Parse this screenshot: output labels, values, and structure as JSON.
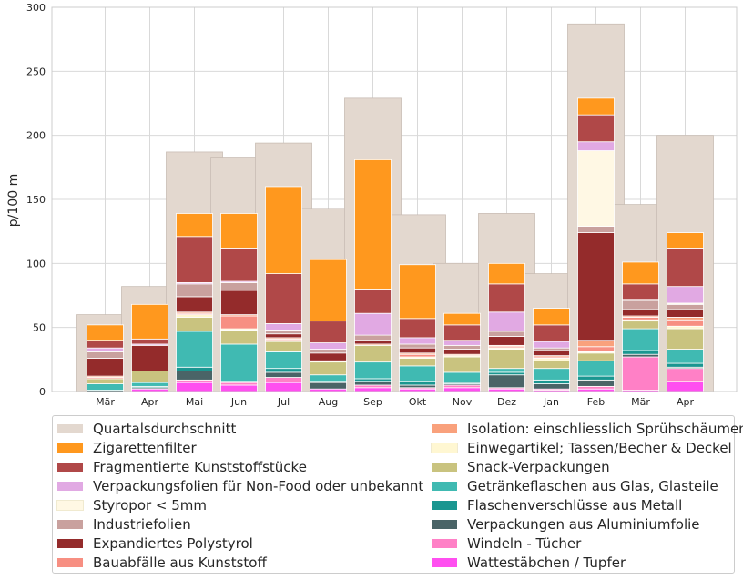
{
  "chart_data": {
    "type": "bar",
    "ylabel": "p/100 m",
    "xlabel": "",
    "ylim": [
      0,
      300
    ],
    "yticks": [
      0,
      50,
      100,
      150,
      200,
      250,
      300
    ],
    "grid": true,
    "categories": [
      "Mär",
      "Apr",
      "Mai",
      "Jun",
      "Jul",
      "Aug",
      "Sep",
      "Okt",
      "Nov",
      "Dez",
      "Jan",
      "Feb",
      "Mär",
      "Apr"
    ],
    "background_series": {
      "name": "Quartalsdurchschnitt",
      "color": "#e3d8cf",
      "values": [
        60,
        82,
        187,
        183,
        194,
        143,
        229,
        138,
        100,
        139,
        92,
        287,
        146,
        200
      ]
    },
    "series": [
      {
        "name": "Wattestäbchen / Tupfer",
        "color": "#ff4ff0",
        "values": [
          0,
          2,
          7,
          5,
          7,
          2,
          3,
          2,
          3,
          2,
          1,
          2,
          1,
          8
        ]
      },
      {
        "name": "Windeln - Tücher",
        "color": "#ff80c6",
        "values": [
          0,
          0,
          2,
          2,
          4,
          0,
          2,
          1,
          2,
          1,
          1,
          2,
          26,
          10
        ]
      },
      {
        "name": "Verpackungen aus Aluminiumfolie",
        "color": "#4a6467",
        "values": [
          1,
          1,
          7,
          1,
          4,
          5,
          3,
          2,
          1,
          10,
          4,
          5,
          2,
          1
        ]
      },
      {
        "name": "Flaschenverschlüsse aus Metall",
        "color": "#1a9690",
        "values": [
          0,
          1,
          3,
          0,
          3,
          1,
          2,
          3,
          1,
          2,
          3,
          3,
          3,
          3
        ]
      },
      {
        "name": "Getränkeflaschen aus Glas, Glasteile",
        "color": "#40bab2",
        "values": [
          5,
          3,
          28,
          29,
          13,
          5,
          13,
          12,
          8,
          3,
          9,
          12,
          17,
          11
        ]
      },
      {
        "name": "Snack-Verpackungen",
        "color": "#c9c37f",
        "values": [
          4,
          9,
          11,
          11,
          8,
          10,
          13,
          6,
          12,
          15,
          6,
          6,
          6,
          16
        ]
      },
      {
        "name": "Einwegartikel; Tassen/Becher & Deckel",
        "color": "#fff7d2",
        "values": [
          0,
          0,
          2,
          1,
          1,
          1,
          0,
          1,
          1,
          1,
          2,
          1,
          1,
          2
        ]
      },
      {
        "name": "Bauabfälle aus Kunststoff",
        "color": "#f78f82",
        "values": [
          1,
          0,
          1,
          10,
          1,
          0,
          0,
          2,
          0,
          1,
          1,
          4,
          2,
          5
        ]
      },
      {
        "name": "Isolation: einschliesslich Sprühschäumen",
        "color": "#f9a17c",
        "values": [
          1,
          0,
          1,
          1,
          1,
          0,
          1,
          1,
          1,
          1,
          1,
          5,
          1,
          2
        ]
      },
      {
        "name": "Expandiertes Polystyrol",
        "color": "#942b2b",
        "values": [
          14,
          20,
          12,
          19,
          3,
          6,
          3,
          4,
          4,
          7,
          4,
          84,
          5,
          6
        ]
      },
      {
        "name": "Industriefolien",
        "color": "#c9a19e",
        "values": [
          5,
          0,
          10,
          6,
          3,
          3,
          4,
          3,
          3,
          4,
          2,
          5,
          7,
          4
        ]
      },
      {
        "name": "Styropor < 5mm",
        "color": "#fff8e4",
        "values": [
          0,
          0,
          0,
          0,
          0,
          0,
          0,
          0,
          0,
          0,
          0,
          59,
          0,
          1
        ]
      },
      {
        "name": "Verpackungsfolien für Non-Food oder unbekannt",
        "color": "#e1a9e3",
        "values": [
          3,
          1,
          1,
          1,
          5,
          5,
          17,
          5,
          4,
          15,
          5,
          7,
          1,
          13
        ]
      },
      {
        "name": "Fragmentierte Kunststoffstücke",
        "color": "#b04848",
        "values": [
          6,
          4,
          36,
          26,
          39,
          17,
          19,
          15,
          12,
          22,
          13,
          21,
          12,
          30
        ]
      },
      {
        "name": "Zigarettenfilter",
        "color": "#ff981e",
        "values": [
          12,
          27,
          18,
          27,
          68,
          48,
          101,
          42,
          9,
          16,
          13,
          13,
          17,
          12
        ]
      }
    ]
  },
  "legend": {
    "col1": [
      {
        "label": "Quartalsdurchschnitt",
        "color": "#e3d8cf"
      },
      {
        "label": "Zigarettenfilter",
        "color": "#ff981e"
      },
      {
        "label": "Fragmentierte Kunststoffstücke",
        "color": "#b04848"
      },
      {
        "label": "Verpackungsfolien für Non-Food oder unbekannt",
        "color": "#e1a9e3"
      },
      {
        "label": "Styropor < 5mm",
        "color": "#fff8e4"
      },
      {
        "label": "Industriefolien",
        "color": "#c9a19e"
      },
      {
        "label": "Expandiertes Polystyrol",
        "color": "#942b2b"
      },
      {
        "label": "Bauabfälle aus Kunststoff",
        "color": "#f78f82"
      }
    ],
    "col2": [
      {
        "label": "Isolation: einschliesslich Sprühschäumen",
        "color": "#f9a17c"
      },
      {
        "label": "Einwegartikel; Tassen/Becher & Deckel",
        "color": "#fff7d2"
      },
      {
        "label": "Snack-Verpackungen",
        "color": "#c9c37f"
      },
      {
        "label": "Getränkeflaschen aus Glas, Glasteile",
        "color": "#40bab2"
      },
      {
        "label": "Flaschenverschlüsse aus Metall",
        "color": "#1a9690"
      },
      {
        "label": "Verpackungen aus Aluminiumfolie",
        "color": "#4a6467"
      },
      {
        "label": "Windeln - Tücher",
        "color": "#ff80c6"
      },
      {
        "label": "Wattestäbchen / Tupfer",
        "color": "#ff4ff0"
      }
    ]
  }
}
